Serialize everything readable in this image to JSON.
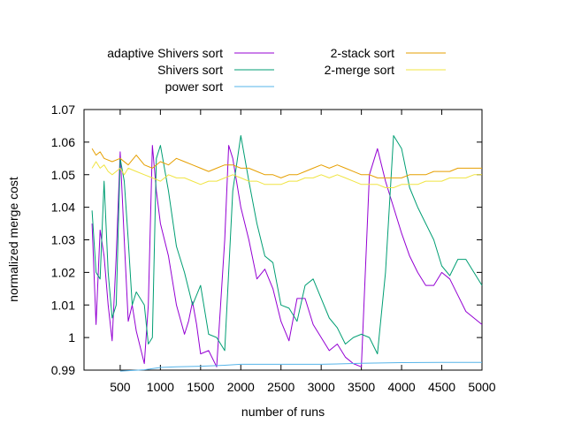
{
  "chart_data": {
    "type": "line",
    "xlabel": "number of runs",
    "ylabel": "normalized merge cost",
    "xlim": [
      50,
      5000
    ],
    "ylim": [
      0.99,
      1.07
    ],
    "xticks": [
      500,
      1000,
      1500,
      2000,
      2500,
      3000,
      3500,
      4000,
      4500,
      5000
    ],
    "xtick_labels": [
      "500",
      "1000",
      "1500",
      "2000",
      "2500",
      "3000",
      "3500",
      "4000",
      "4500",
      "5000"
    ],
    "yticks": [
      0.99,
      1.0,
      1.01,
      1.02,
      1.03,
      1.04,
      1.05,
      1.06,
      1.07
    ],
    "ytick_labels": [
      "0.99",
      "1",
      "1.01",
      "1.02",
      "1.03",
      "1.04",
      "1.05",
      "1.06",
      "1.07"
    ],
    "legend_position": "top",
    "series": [
      {
        "name": "adaptive Shivers sort",
        "color": "#9400d3",
        "points": [
          [
            150,
            1.035
          ],
          [
            200,
            1.004
          ],
          [
            250,
            1.033
          ],
          [
            300,
            1.025
          ],
          [
            350,
            1.01
          ],
          [
            400,
            0.999
          ],
          [
            450,
            1.025
          ],
          [
            500,
            1.057
          ],
          [
            550,
            1.03
          ],
          [
            600,
            1.005
          ],
          [
            650,
            1.01
          ],
          [
            700,
            1.002
          ],
          [
            800,
            0.992
          ],
          [
            850,
            1.01
          ],
          [
            900,
            1.059
          ],
          [
            950,
            1.045
          ],
          [
            1000,
            1.035
          ],
          [
            1100,
            1.025
          ],
          [
            1200,
            1.01
          ],
          [
            1300,
            1.001
          ],
          [
            1350,
            1.005
          ],
          [
            1400,
            1.011
          ],
          [
            1450,
            1.004
          ],
          [
            1500,
            0.995
          ],
          [
            1600,
            0.996
          ],
          [
            1700,
            0.991
          ],
          [
            1800,
            1.03
          ],
          [
            1850,
            1.059
          ],
          [
            1900,
            1.055
          ],
          [
            2000,
            1.04
          ],
          [
            2100,
            1.03
          ],
          [
            2200,
            1.018
          ],
          [
            2300,
            1.021
          ],
          [
            2400,
            1.015
          ],
          [
            2500,
            1.005
          ],
          [
            2600,
            0.999
          ],
          [
            2700,
            1.012
          ],
          [
            2800,
            1.012
          ],
          [
            2900,
            1.004
          ],
          [
            3000,
            1.0
          ],
          [
            3100,
            0.996
          ],
          [
            3200,
            0.998
          ],
          [
            3300,
            0.994
          ],
          [
            3400,
            0.992
          ],
          [
            3500,
            0.991
          ],
          [
            3600,
            1.05
          ],
          [
            3700,
            1.058
          ],
          [
            3800,
            1.048
          ],
          [
            3900,
            1.04
          ],
          [
            4000,
            1.032
          ],
          [
            4100,
            1.025
          ],
          [
            4200,
            1.02
          ],
          [
            4300,
            1.016
          ],
          [
            4400,
            1.016
          ],
          [
            4500,
            1.02
          ],
          [
            4600,
            1.018
          ],
          [
            4700,
            1.013
          ],
          [
            4800,
            1.008
          ],
          [
            4900,
            1.006
          ],
          [
            5000,
            1.004
          ]
        ]
      },
      {
        "name": "Shivers sort",
        "color": "#009e73",
        "points": [
          [
            150,
            1.039
          ],
          [
            200,
            1.02
          ],
          [
            250,
            1.018
          ],
          [
            300,
            1.048
          ],
          [
            350,
            1.02
          ],
          [
            400,
            1.006
          ],
          [
            450,
            1.01
          ],
          [
            500,
            1.055
          ],
          [
            550,
            1.048
          ],
          [
            600,
            1.03
          ],
          [
            650,
            1.01
          ],
          [
            700,
            1.014
          ],
          [
            800,
            1.01
          ],
          [
            850,
            0.998
          ],
          [
            900,
            1.0
          ],
          [
            950,
            1.055
          ],
          [
            1000,
            1.059
          ],
          [
            1100,
            1.045
          ],
          [
            1200,
            1.028
          ],
          [
            1300,
            1.02
          ],
          [
            1400,
            1.01
          ],
          [
            1500,
            1.016
          ],
          [
            1600,
            1.001
          ],
          [
            1700,
            1.0
          ],
          [
            1800,
            0.996
          ],
          [
            1900,
            1.045
          ],
          [
            2000,
            1.062
          ],
          [
            2100,
            1.048
          ],
          [
            2200,
            1.035
          ],
          [
            2300,
            1.025
          ],
          [
            2400,
            1.023
          ],
          [
            2500,
            1.01
          ],
          [
            2600,
            1.009
          ],
          [
            2700,
            1.005
          ],
          [
            2800,
            1.016
          ],
          [
            2900,
            1.018
          ],
          [
            3000,
            1.012
          ],
          [
            3100,
            1.006
          ],
          [
            3200,
            1.003
          ],
          [
            3300,
            0.998
          ],
          [
            3400,
            1.0
          ],
          [
            3500,
            1.001
          ],
          [
            3600,
            1.0
          ],
          [
            3700,
            0.995
          ],
          [
            3800,
            1.02
          ],
          [
            3900,
            1.062
          ],
          [
            4000,
            1.058
          ],
          [
            4100,
            1.046
          ],
          [
            4200,
            1.04
          ],
          [
            4300,
            1.035
          ],
          [
            4400,
            1.03
          ],
          [
            4500,
            1.022
          ],
          [
            4600,
            1.019
          ],
          [
            4700,
            1.024
          ],
          [
            4800,
            1.024
          ],
          [
            4900,
            1.02
          ],
          [
            5000,
            1.016
          ]
        ]
      },
      {
        "name": "power sort",
        "color": "#56b4e9",
        "points": [
          [
            500,
            0.9897
          ],
          [
            800,
            0.9901
          ],
          [
            1000,
            0.9908
          ],
          [
            1200,
            0.991
          ],
          [
            1500,
            0.9912
          ],
          [
            1800,
            0.9915
          ],
          [
            2000,
            0.9918
          ],
          [
            2500,
            0.9918
          ],
          [
            3000,
            0.9918
          ],
          [
            3500,
            0.9921
          ],
          [
            4000,
            0.9923
          ],
          [
            4500,
            0.9924
          ],
          [
            5000,
            0.9924
          ]
        ]
      },
      {
        "name": "2-stack sort",
        "color": "#e69f00",
        "points": [
          [
            150,
            1.058
          ],
          [
            200,
            1.056
          ],
          [
            250,
            1.057
          ],
          [
            300,
            1.055
          ],
          [
            400,
            1.054
          ],
          [
            500,
            1.055
          ],
          [
            600,
            1.053
          ],
          [
            700,
            1.056
          ],
          [
            800,
            1.053
          ],
          [
            900,
            1.052
          ],
          [
            1000,
            1.054
          ],
          [
            1100,
            1.053
          ],
          [
            1200,
            1.055
          ],
          [
            1300,
            1.054
          ],
          [
            1400,
            1.053
          ],
          [
            1500,
            1.052
          ],
          [
            1600,
            1.051
          ],
          [
            1700,
            1.052
          ],
          [
            1800,
            1.053
          ],
          [
            1900,
            1.053
          ],
          [
            2000,
            1.052
          ],
          [
            2100,
            1.052
          ],
          [
            2200,
            1.051
          ],
          [
            2300,
            1.05
          ],
          [
            2400,
            1.05
          ],
          [
            2500,
            1.049
          ],
          [
            2600,
            1.05
          ],
          [
            2700,
            1.05
          ],
          [
            2800,
            1.051
          ],
          [
            2900,
            1.052
          ],
          [
            3000,
            1.053
          ],
          [
            3100,
            1.052
          ],
          [
            3200,
            1.053
          ],
          [
            3300,
            1.052
          ],
          [
            3400,
            1.051
          ],
          [
            3500,
            1.05
          ],
          [
            3600,
            1.05
          ],
          [
            3700,
            1.049
          ],
          [
            3800,
            1.049
          ],
          [
            3900,
            1.049
          ],
          [
            4000,
            1.049
          ],
          [
            4100,
            1.05
          ],
          [
            4200,
            1.05
          ],
          [
            4300,
            1.05
          ],
          [
            4400,
            1.051
          ],
          [
            4500,
            1.051
          ],
          [
            4600,
            1.051
          ],
          [
            4700,
            1.052
          ],
          [
            4800,
            1.052
          ],
          [
            4900,
            1.052
          ],
          [
            5000,
            1.052
          ]
        ]
      },
      {
        "name": "2-merge sort",
        "color": "#f0e442",
        "points": [
          [
            150,
            1.052
          ],
          [
            200,
            1.054
          ],
          [
            250,
            1.052
          ],
          [
            300,
            1.053
          ],
          [
            350,
            1.051
          ],
          [
            400,
            1.05
          ],
          [
            450,
            1.051
          ],
          [
            500,
            1.052
          ],
          [
            550,
            1.05
          ],
          [
            600,
            1.052
          ],
          [
            700,
            1.051
          ],
          [
            800,
            1.05
          ],
          [
            900,
            1.049
          ],
          [
            1000,
            1.048
          ],
          [
            1100,
            1.05
          ],
          [
            1200,
            1.049
          ],
          [
            1300,
            1.049
          ],
          [
            1400,
            1.048
          ],
          [
            1500,
            1.047
          ],
          [
            1600,
            1.048
          ],
          [
            1700,
            1.048
          ],
          [
            1800,
            1.049
          ],
          [
            1900,
            1.05
          ],
          [
            2000,
            1.049
          ],
          [
            2100,
            1.048
          ],
          [
            2200,
            1.048
          ],
          [
            2300,
            1.047
          ],
          [
            2400,
            1.047
          ],
          [
            2500,
            1.047
          ],
          [
            2600,
            1.048
          ],
          [
            2700,
            1.048
          ],
          [
            2800,
            1.049
          ],
          [
            2900,
            1.049
          ],
          [
            3000,
            1.05
          ],
          [
            3100,
            1.049
          ],
          [
            3200,
            1.05
          ],
          [
            3300,
            1.049
          ],
          [
            3400,
            1.048
          ],
          [
            3500,
            1.047
          ],
          [
            3600,
            1.047
          ],
          [
            3700,
            1.047
          ],
          [
            3800,
            1.046
          ],
          [
            3900,
            1.046
          ],
          [
            4000,
            1.047
          ],
          [
            4100,
            1.047
          ],
          [
            4200,
            1.047
          ],
          [
            4300,
            1.048
          ],
          [
            4400,
            1.048
          ],
          [
            4500,
            1.048
          ],
          [
            4600,
            1.049
          ],
          [
            4700,
            1.049
          ],
          [
            4800,
            1.049
          ],
          [
            4900,
            1.05
          ],
          [
            5000,
            1.05
          ]
        ]
      }
    ]
  }
}
